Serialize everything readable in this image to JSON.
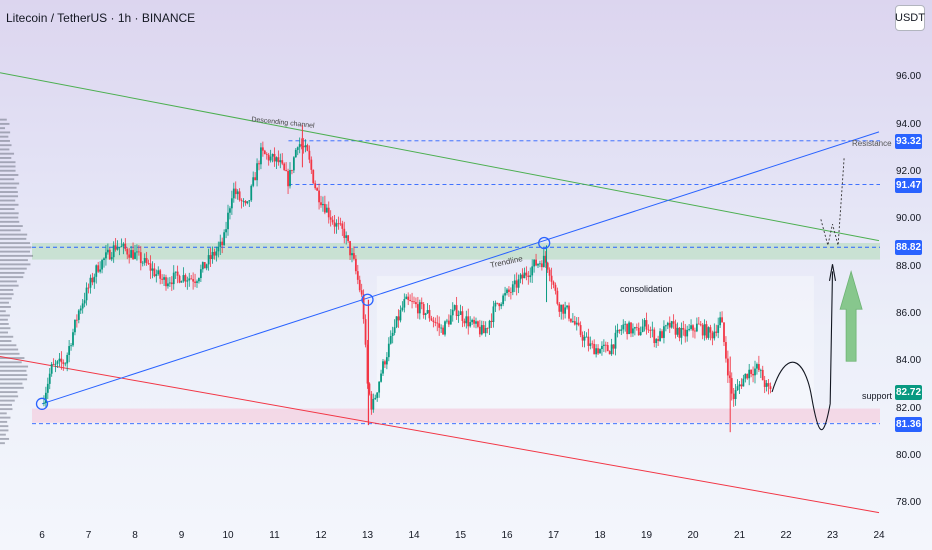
{
  "header": {
    "title": "Litecoin / TetherUS · 1h · BINANCE",
    "currency_button": "USDT"
  },
  "chart_data": {
    "type": "candlestick",
    "title": "Litecoin / TetherUS · 1h · BINANCE",
    "ylim": [
      76.4,
      98.0
    ],
    "y_ticks": [
      78,
      80,
      82,
      84,
      86,
      88,
      90,
      92,
      94,
      96
    ],
    "y_tick_labels": [
      "78.00",
      "80.00",
      "82.00",
      "84.00",
      "86.00",
      "88.00",
      "90.00",
      "92.00",
      "94.00",
      "96.00"
    ],
    "x_ticks": [
      6,
      7,
      8,
      9,
      10,
      11,
      12,
      13,
      14,
      15,
      16,
      17,
      18,
      19,
      20,
      21,
      22,
      23,
      24
    ],
    "x_tick_labels": [
      "6",
      "7",
      "8",
      "9",
      "10",
      "11",
      "12",
      "13",
      "14",
      "15",
      "16",
      "17",
      "18",
      "19",
      "20",
      "21",
      "22",
      "23",
      "24"
    ],
    "price_path": [
      [
        6.0,
        82.2
      ],
      [
        6.2,
        83.7
      ],
      [
        6.5,
        84.0
      ],
      [
        6.8,
        86.2
      ],
      [
        7.2,
        88.0
      ],
      [
        7.6,
        88.9
      ],
      [
        8.0,
        88.5
      ],
      [
        8.3,
        88.0
      ],
      [
        8.6,
        87.4
      ],
      [
        9.0,
        87.6
      ],
      [
        9.3,
        87.5
      ],
      [
        9.6,
        88.3
      ],
      [
        9.9,
        89.0
      ],
      [
        10.1,
        91.3
      ],
      [
        10.4,
        90.4
      ],
      [
        10.7,
        92.8
      ],
      [
        10.9,
        92.6
      ],
      [
        11.1,
        92.4
      ],
      [
        11.3,
        91.6
      ],
      [
        11.5,
        93.3
      ],
      [
        11.7,
        92.8
      ],
      [
        11.9,
        91.2
      ],
      [
        12.1,
        90.5
      ],
      [
        12.3,
        89.8
      ],
      [
        12.5,
        89.4
      ],
      [
        12.7,
        88.2
      ],
      [
        12.9,
        86.5
      ],
      [
        13.0,
        83.0
      ],
      [
        13.1,
        82.0
      ],
      [
        13.3,
        83.6
      ],
      [
        13.6,
        85.5
      ],
      [
        13.8,
        86.5
      ],
      [
        14.0,
        86.4
      ],
      [
        14.3,
        86.0
      ],
      [
        14.6,
        85.3
      ],
      [
        14.9,
        86.2
      ],
      [
        15.2,
        85.6
      ],
      [
        15.5,
        85.2
      ],
      [
        15.8,
        86.5
      ],
      [
        16.1,
        87.0
      ],
      [
        16.4,
        87.7
      ],
      [
        16.6,
        88.1
      ],
      [
        16.8,
        88.3
      ],
      [
        16.9,
        88.0
      ],
      [
        17.1,
        86.4
      ],
      [
        17.3,
        86.1
      ],
      [
        17.5,
        85.4
      ],
      [
        17.8,
        84.6
      ],
      [
        18.0,
        84.5
      ],
      [
        18.2,
        84.5
      ],
      [
        18.5,
        85.5
      ],
      [
        18.8,
        85.2
      ],
      [
        19.0,
        85.6
      ],
      [
        19.2,
        84.9
      ],
      [
        19.5,
        85.5
      ],
      [
        19.8,
        85.1
      ],
      [
        20.1,
        85.5
      ],
      [
        20.4,
        85.1
      ],
      [
        20.6,
        85.8
      ],
      [
        20.7,
        84.3
      ],
      [
        20.85,
        82.4
      ],
      [
        21.0,
        83.0
      ],
      [
        21.2,
        83.6
      ],
      [
        21.4,
        83.7
      ],
      [
        21.6,
        82.8
      ],
      [
        21.7,
        82.7
      ]
    ],
    "descending_channel": {
      "label": "Descending channel",
      "upper": [
        [
          5.0,
          96.2
        ],
        [
          24.0,
          89.1
        ]
      ],
      "lower": [
        [
          5.0,
          84.2
        ],
        [
          24.0,
          77.6
        ]
      ]
    },
    "trendline": {
      "label": "Trendline",
      "points": [
        [
          6.0,
          82.2
        ],
        [
          24.0,
          93.7
        ]
      ]
    },
    "touch_points": [
      [
        6.0,
        82.2
      ],
      [
        13.0,
        86.6
      ],
      [
        16.8,
        89.0
      ]
    ],
    "levels": [
      {
        "price": 93.32,
        "label": "93.32",
        "color": "#2962ff"
      },
      {
        "price": 91.47,
        "label": "91.47",
        "color": "#2962ff"
      },
      {
        "price": 88.82,
        "label": "88.82",
        "color": "#2962ff"
      },
      {
        "price": 82.72,
        "label": "82.72",
        "color": "#089981"
      },
      {
        "price": 81.36,
        "label": "81.36",
        "color": "#2962ff"
      }
    ],
    "zones": [
      {
        "name": "resistance-zone",
        "from": 88.3,
        "to": 89.0,
        "color": "#a5d6a7"
      },
      {
        "name": "support-zone",
        "from": 81.4,
        "to": 82.0,
        "color": "#f8bbd0"
      }
    ],
    "annotations": {
      "resistance": "Resistance",
      "consolidation": "consolidation",
      "support": "support"
    },
    "projection": [
      [
        21.7,
        82.7
      ],
      [
        22.2,
        84.0
      ],
      [
        22.5,
        82.8
      ],
      [
        22.8,
        81.5
      ],
      [
        23.0,
        83.5
      ],
      [
        23.1,
        87.3
      ]
    ],
    "colors": {
      "up": "#089981",
      "down": "#f23645",
      "channel_upper": "#4caf50",
      "channel_lower": "#f23645",
      "trendline": "#2962ff"
    }
  }
}
